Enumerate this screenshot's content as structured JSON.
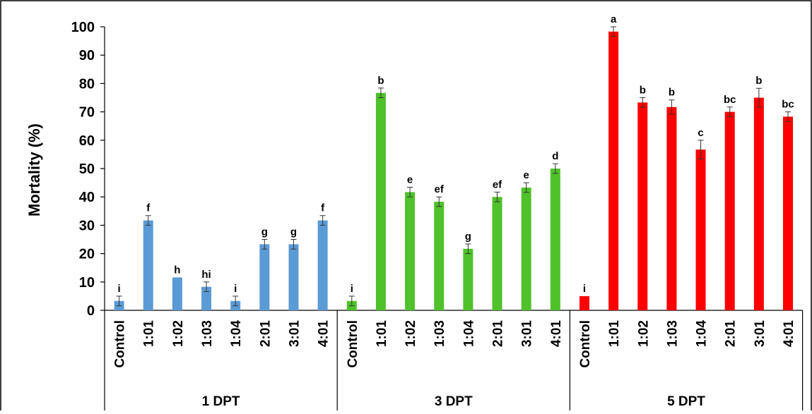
{
  "chart_data": {
    "type": "bar",
    "ylabel": "Mortality (%)",
    "ylim": [
      0,
      100
    ],
    "yticks": [
      0,
      10,
      20,
      30,
      40,
      50,
      60,
      70,
      80,
      90,
      100
    ],
    "grid": false,
    "groups": [
      {
        "name": "1 DPT",
        "color": "#5b9bd5",
        "categories": [
          "Control",
          "1:01",
          "1:02",
          "1:03",
          "1:04",
          "2:01",
          "3:01",
          "4:01"
        ],
        "values": [
          3.3,
          31.7,
          11.6,
          8.3,
          3.3,
          23.3,
          23.3,
          31.7
        ],
        "errors": [
          1.7,
          1.7,
          0.0,
          1.7,
          1.7,
          1.7,
          1.7,
          1.7
        ],
        "letters": [
          "i",
          "f",
          "h",
          "hi",
          "i",
          "g",
          "g",
          "f"
        ]
      },
      {
        "name": "3 DPT",
        "color": "#4fc12a",
        "categories": [
          "Control",
          "1:01",
          "1:02",
          "1:03",
          "1:04",
          "2:01",
          "3:01",
          "4:01"
        ],
        "values": [
          3.3,
          76.7,
          41.7,
          38.3,
          21.7,
          40.0,
          43.3,
          50.0
        ],
        "errors": [
          1.7,
          1.7,
          1.7,
          1.7,
          1.7,
          1.7,
          1.7,
          1.7
        ],
        "letters": [
          "i",
          "b",
          "e",
          "ef",
          "g",
          "ef",
          "e",
          "d"
        ]
      },
      {
        "name": "5 DPT",
        "color": "#ff0000",
        "categories": [
          "Control",
          "1:01",
          "1:02",
          "1:03",
          "1:04",
          "2:01",
          "3:01",
          "4:01"
        ],
        "values": [
          5.0,
          98.3,
          73.3,
          71.7,
          56.7,
          70.0,
          75.0,
          68.3
        ],
        "errors": [
          0.0,
          1.7,
          1.7,
          2.5,
          3.3,
          1.7,
          3.3,
          1.7
        ],
        "letters": [
          "i",
          "a",
          "b",
          "b",
          "c",
          "bc",
          "b",
          "bc"
        ]
      }
    ]
  }
}
